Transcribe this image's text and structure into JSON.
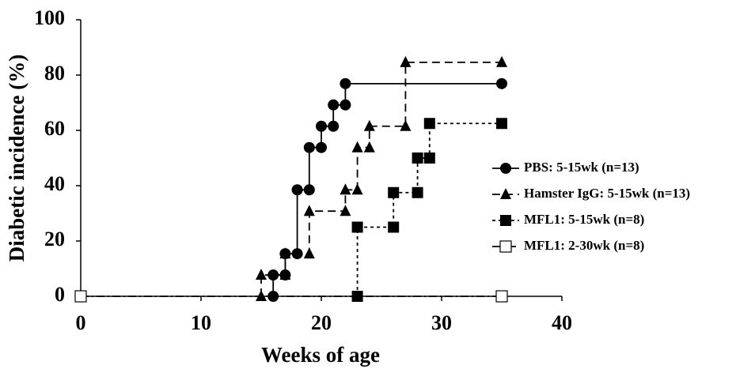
{
  "chart_data": {
    "type": "line",
    "xlabel": "Weeks of age",
    "ylabel": "Diabetic incidence (%)",
    "xlim": [
      0,
      40
    ],
    "ylim": [
      0,
      100
    ],
    "xticks": [
      0,
      10,
      20,
      30,
      40
    ],
    "yticks": [
      0,
      20,
      40,
      60,
      80,
      100
    ],
    "legend": "right",
    "series": [
      {
        "name": "PBS: 5-15wk (n=13)",
        "color": "#000000",
        "marker": "circle",
        "linestyle": "solid",
        "x": [
          16,
          16,
          17,
          17,
          18,
          18,
          19,
          19,
          20,
          20,
          21,
          21,
          22,
          22,
          35
        ],
        "values": [
          0,
          7.7,
          7.7,
          15.4,
          15.4,
          38.5,
          38.5,
          53.8,
          53.8,
          61.5,
          61.5,
          69.2,
          69.2,
          76.9,
          76.9
        ]
      },
      {
        "name": "Hamster IgG: 5-15wk (n=13)",
        "color": "#000000",
        "marker": "triangle",
        "linestyle": "dashed",
        "x": [
          15,
          15,
          17,
          17,
          19,
          19,
          22,
          22,
          23,
          23,
          24,
          24,
          27,
          27,
          35
        ],
        "values": [
          0,
          7.7,
          7.7,
          15.4,
          15.4,
          30.8,
          30.8,
          38.5,
          38.5,
          53.8,
          53.8,
          61.5,
          61.5,
          84.6,
          84.6
        ]
      },
      {
        "name": "MFL1: 5-15wk (n=8)",
        "color": "#000000",
        "marker": "square",
        "linestyle": "dotted",
        "x": [
          23,
          23,
          26,
          26,
          28,
          28,
          29,
          29,
          35
        ],
        "values": [
          0,
          25,
          25,
          37.5,
          37.5,
          50,
          50,
          62.5,
          62.5
        ]
      },
      {
        "name": "MFL1: 2-30wk (n=8)",
        "color": "#000000",
        "marker": "open-square",
        "linestyle": "dashdot",
        "x": [
          0,
          35
        ],
        "values": [
          0,
          0
        ]
      }
    ]
  }
}
